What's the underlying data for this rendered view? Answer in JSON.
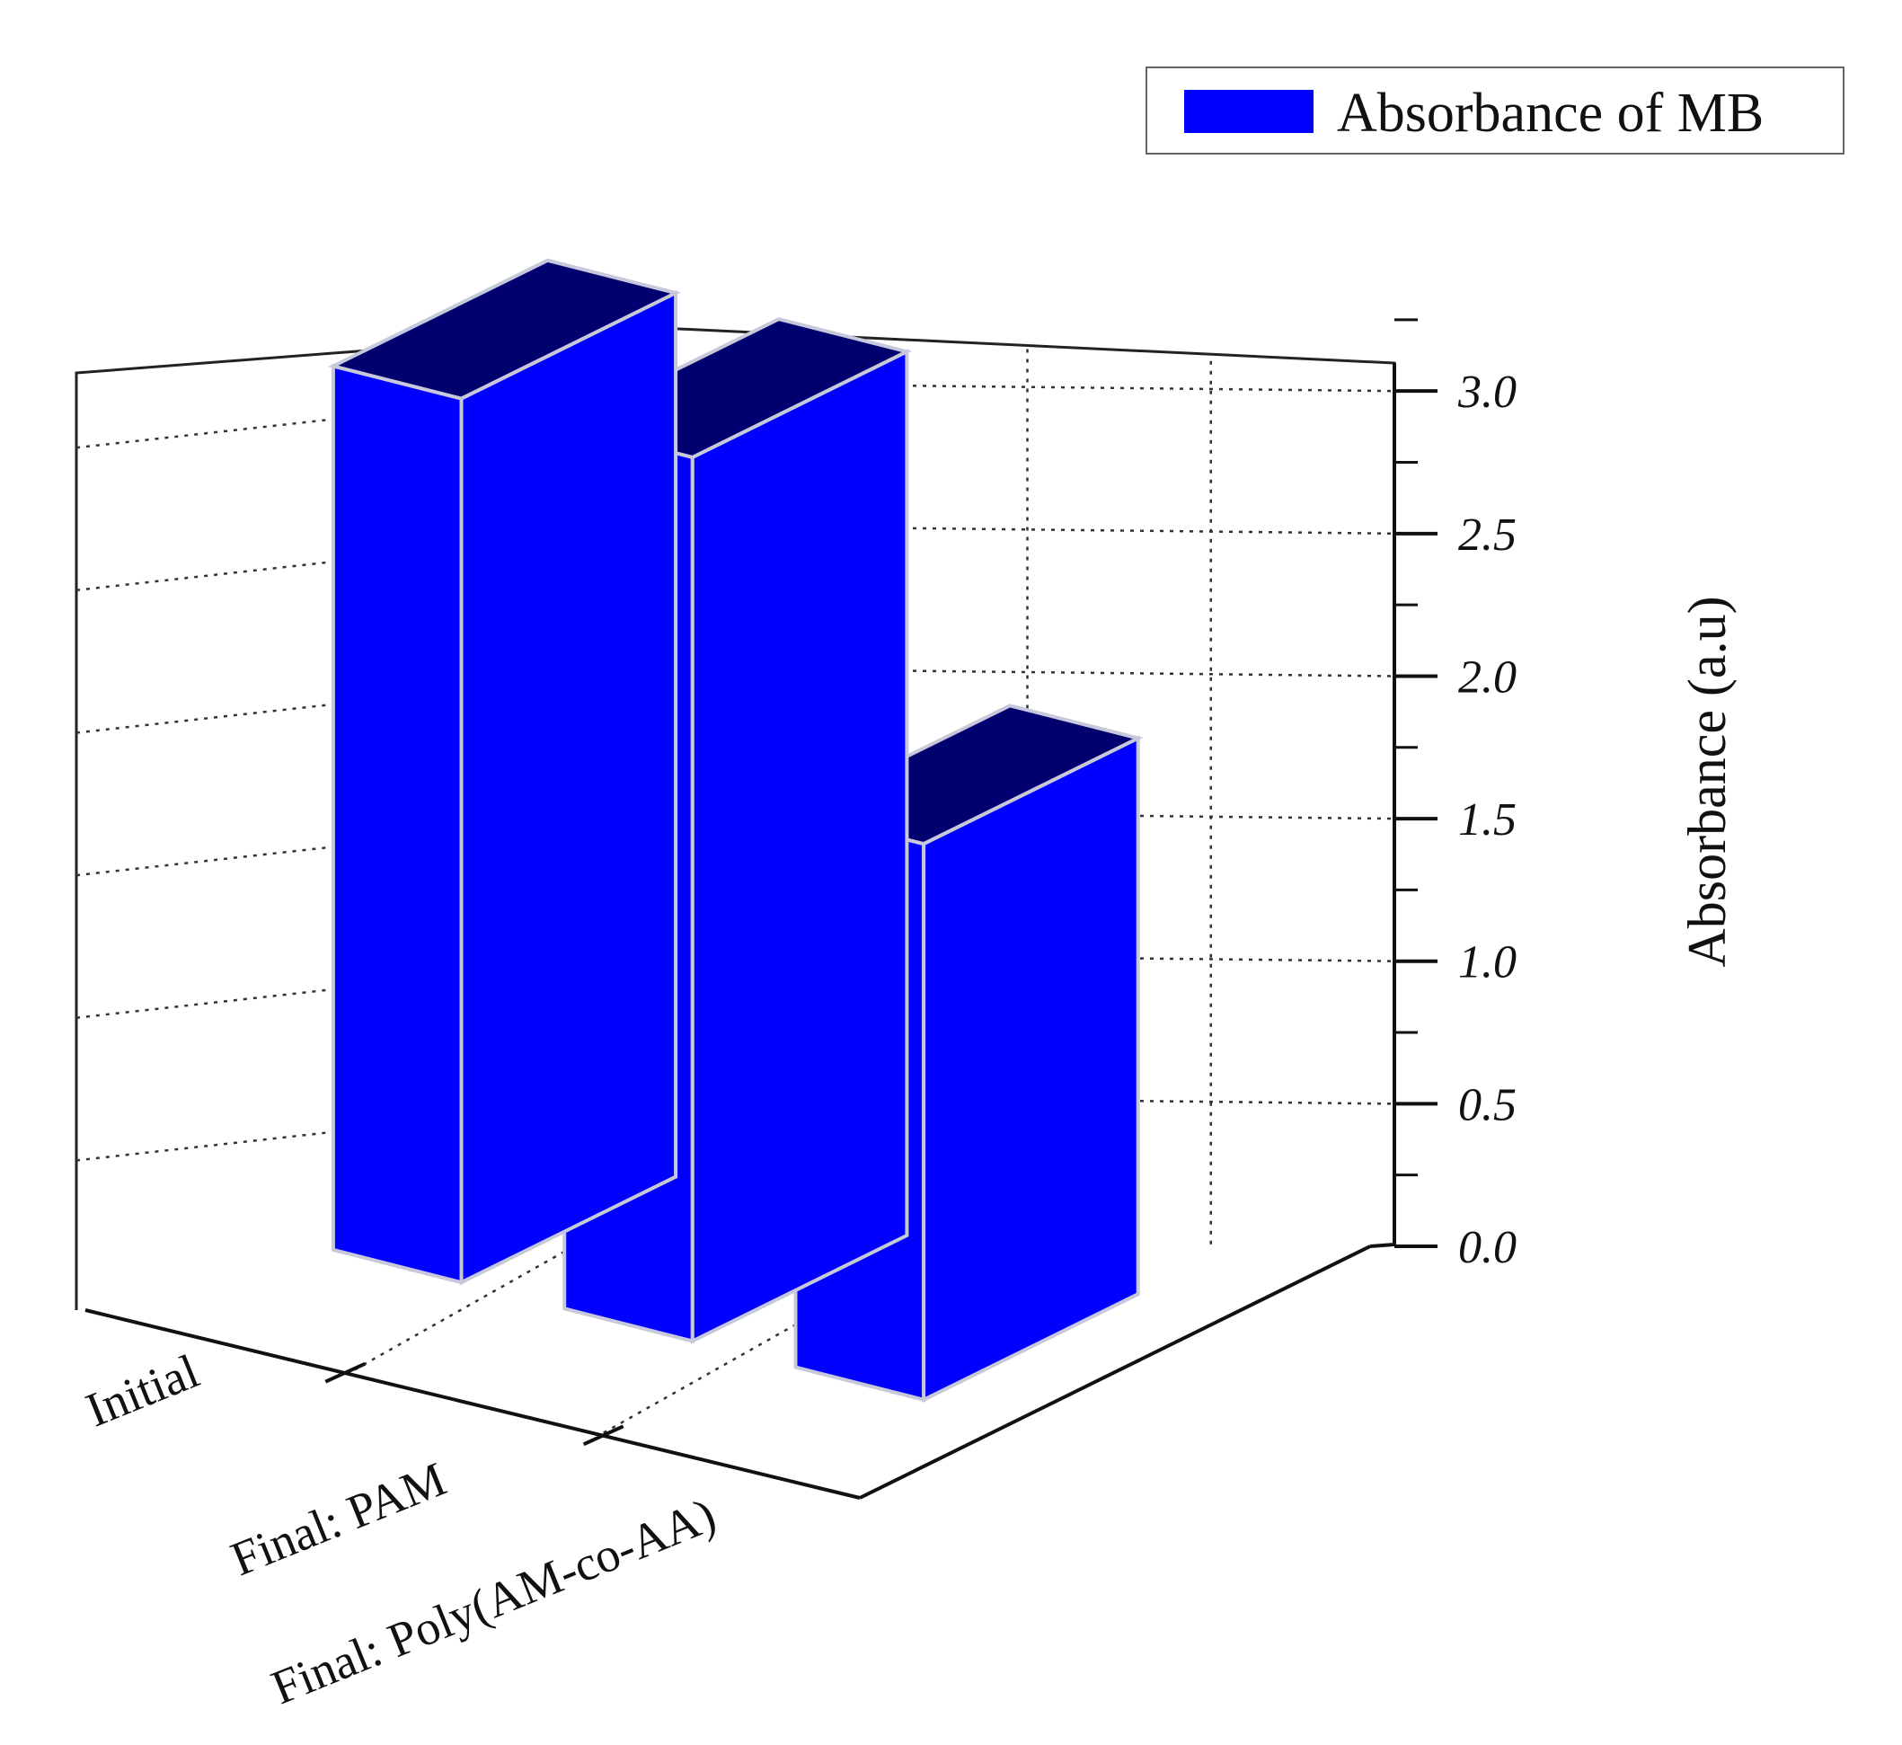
{
  "chart_data": {
    "type": "bar",
    "categories": [
      "Initial",
      "Final: PAM",
      "Final: Poly(AM-co-AA)"
    ],
    "series": [
      {
        "name": "Absorbance of MB",
        "values": [
          3.1,
          3.1,
          1.95
        ]
      }
    ],
    "xlabel": "",
    "ylabel": "Absorbance (a.u)",
    "ylim": [
      0,
      3.3
    ],
    "yticks": [
      "0.0",
      "0.5",
      "1.0",
      "1.5",
      "2.0",
      "2.5",
      "3.0"
    ],
    "grid": true,
    "legend": "top-right",
    "projection": "3d",
    "colors": {
      "bar": "#0000FF",
      "bar_top": "#00006E",
      "edge": "#C8C8DC"
    }
  }
}
